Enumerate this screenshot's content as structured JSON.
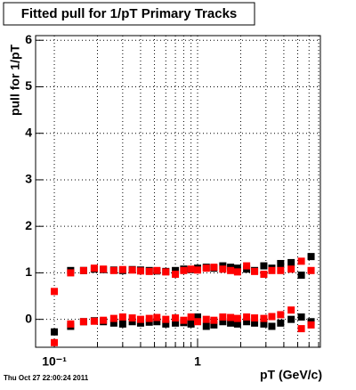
{
  "chart_data": {
    "type": "scatter",
    "title": "Fitted pull for 1/pT  Primary Tracks",
    "x_label": "pT (GeV/c)",
    "y_label": "pull for 1/pT",
    "timestamp": "Thu Oct 27 22:00:24 2011",
    "x_log": true,
    "grid": true,
    "xlim": [
      0.074,
      7.2
    ],
    "ylim": [
      -0.6,
      6.1
    ],
    "xticks": [
      {
        "value": 0.1,
        "label": "10⁻¹"
      },
      {
        "value": 1,
        "label": "1"
      }
    ],
    "xminorticks": [
      0.2,
      0.3,
      0.4,
      0.5,
      0.6,
      0.7,
      0.8,
      0.9,
      2,
      3,
      4,
      5,
      6,
      7
    ],
    "yticks": [
      0,
      1,
      2,
      3,
      4,
      5,
      6
    ],
    "x": [
      0.1,
      0.13,
      0.16,
      0.19,
      0.22,
      0.26,
      0.3,
      0.35,
      0.4,
      0.46,
      0.52,
      0.6,
      0.7,
      0.8,
      0.9,
      1.0,
      1.15,
      1.3,
      1.5,
      1.7,
      1.9,
      2.2,
      2.5,
      2.9,
      3.3,
      3.8,
      4.5,
      5.3,
      6.2
    ],
    "series": [
      {
        "color": "#000000",
        "values": [
          null,
          1.05,
          1.05,
          1.08,
          1.07,
          1.06,
          1.05,
          1.07,
          1.06,
          1.05,
          1.04,
          1.03,
          1.05,
          1.08,
          1.07,
          1.1,
          1.12,
          1.1,
          1.15,
          1.12,
          1.1,
          1.08,
          1.05,
          1.15,
          1.1,
          1.2,
          1.22,
          0.95,
          1.35
        ]
      },
      {
        "color": "#000000",
        "values": [
          -0.27,
          -0.15,
          -0.05,
          -0.03,
          -0.05,
          -0.08,
          -0.1,
          -0.05,
          -0.08,
          -0.06,
          -0.05,
          -0.1,
          -0.08,
          -0.07,
          -0.1,
          0.05,
          -0.15,
          -0.12,
          -0.05,
          -0.08,
          -0.1,
          -0.05,
          -0.08,
          -0.1,
          -0.15,
          -0.08,
          0.0,
          0.05,
          -0.05
        ]
      },
      {
        "color": "#ff0000",
        "values": [
          0.6,
          1.0,
          1.05,
          1.1,
          1.08,
          1.05,
          1.07,
          1.06,
          1.04,
          1.03,
          1.05,
          1.02,
          0.97,
          1.05,
          1.08,
          1.06,
          1.1,
          1.12,
          1.08,
          1.05,
          1.02,
          1.15,
          1.03,
          0.97,
          1.05,
          1.05,
          1.08,
          1.25,
          1.05
        ]
      },
      {
        "color": "#ff0000",
        "values": [
          -0.5,
          -0.1,
          -0.05,
          -0.04,
          -0.02,
          0.02,
          0.05,
          0.03,
          0.0,
          0.02,
          0.04,
          0.0,
          0.03,
          -0.02,
          0.05,
          -0.05,
          0.0,
          -0.02,
          0.05,
          0.04,
          0.02,
          0.05,
          0.03,
          0.02,
          0.06,
          0.1,
          0.2,
          -0.2,
          -0.12
        ]
      }
    ]
  }
}
